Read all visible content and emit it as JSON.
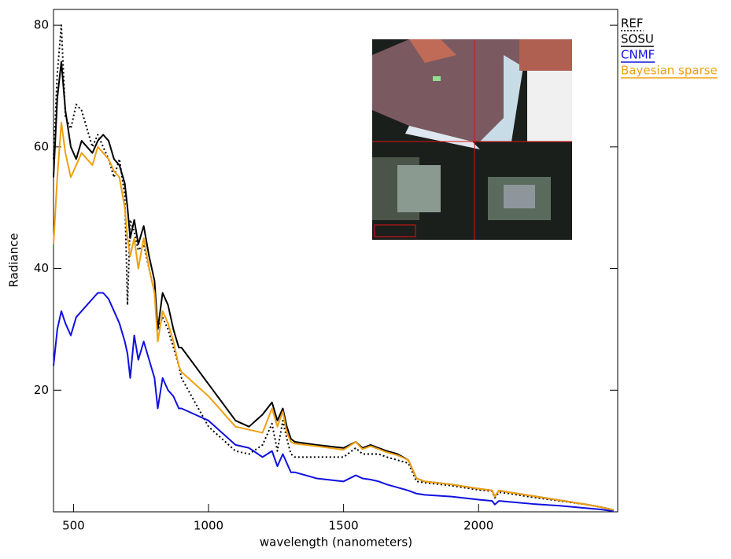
{
  "chart_data": {
    "type": "line",
    "xlabel": "wavelength (nanometers)",
    "ylabel": "Radiance",
    "x": [
      426,
      440,
      455,
      470,
      490,
      510,
      530,
      550,
      570,
      590,
      610,
      630,
      650,
      670,
      690,
      700,
      710,
      725,
      740,
      760,
      780,
      800,
      812,
      830,
      850,
      870,
      890,
      900,
      1000,
      1100,
      1150,
      1200,
      1235,
      1255,
      1275,
      1290,
      1305,
      1320,
      1400,
      1500,
      1545,
      1570,
      1600,
      1630,
      1660,
      1700,
      1740,
      1770,
      1800,
      1900,
      2000,
      2050,
      2060,
      2075,
      2100,
      2200,
      2300,
      2400,
      2450,
      2500
    ],
    "series": [
      {
        "name": "REF",
        "color": "#000000",
        "line_style": "dotted",
        "values": [
          58,
          72,
          80,
          65,
          63,
          67,
          66,
          63,
          60,
          62,
          60,
          58,
          55,
          58,
          52,
          34,
          48,
          46,
          43,
          44,
          40,
          36,
          30,
          32,
          30,
          27,
          24,
          22,
          14,
          10,
          9.5,
          11,
          14.5,
          10,
          15,
          12,
          9.5,
          9,
          9,
          9,
          10.5,
          9.5,
          9.5,
          9.5,
          9,
          8.5,
          8,
          5,
          4.8,
          4.3,
          3.6,
          3.4,
          2.3,
          3.2,
          3.1,
          2.4,
          1.8,
          1.2,
          0.8,
          0.3
        ]
      },
      {
        "name": "SOSU",
        "color": "#000000",
        "line_style": "solid",
        "values": [
          55,
          68,
          74,
          66,
          60,
          58,
          61,
          60,
          59,
          61,
          62,
          61,
          58,
          57,
          54,
          50,
          45,
          48,
          44,
          47,
          42,
          38,
          30,
          36,
          34,
          30,
          27,
          27,
          21,
          15,
          14,
          16,
          18,
          15,
          17,
          14,
          12,
          11.5,
          11,
          10.5,
          11.5,
          10.5,
          11,
          10.5,
          10,
          9.5,
          8.5,
          5.5,
          5,
          4.5,
          3.8,
          3.5,
          2.5,
          3.5,
          3.3,
          2.6,
          1.9,
          1.2,
          0.8,
          0.3
        ]
      },
      {
        "name": "CNMF",
        "color": "#1010e0",
        "line_style": "solid",
        "values": [
          24,
          30,
          33,
          31,
          29,
          32,
          33,
          34,
          35,
          36,
          36,
          35,
          33,
          31,
          28,
          26,
          22,
          29,
          25,
          28,
          25,
          22,
          17,
          22,
          20,
          19,
          17,
          17,
          15,
          11,
          10.5,
          9,
          10,
          7.5,
          9.5,
          8,
          6.5,
          6.5,
          5.5,
          5,
          6,
          5.5,
          5.3,
          5,
          4.5,
          4,
          3.5,
          3,
          2.8,
          2.5,
          2,
          1.8,
          1.2,
          1.8,
          1.7,
          1.3,
          1,
          0.6,
          0.4,
          0.1
        ]
      },
      {
        "name": "Bayesian sparse",
        "color": "#f0a010",
        "line_style": "solid",
        "values": [
          44,
          55,
          64,
          59,
          55,
          57,
          59,
          58,
          57,
          60,
          59,
          58,
          56,
          55,
          50,
          45,
          42,
          45,
          40,
          45,
          40,
          36,
          28,
          33,
          31,
          28,
          24,
          23,
          19,
          14,
          13.5,
          13,
          17,
          14,
          16.5,
          13,
          11.5,
          11.2,
          10.8,
          10.2,
          11.5,
          10.3,
          10.8,
          10.3,
          9.8,
          9.3,
          8.5,
          5.5,
          5,
          4.5,
          3.8,
          3.5,
          2.5,
          3.5,
          3.3,
          2.6,
          1.9,
          1.2,
          0.8,
          0.3
        ]
      }
    ],
    "xlim": [
      426,
      2515
    ],
    "ylim": [
      0,
      82.6
    ],
    "xticks": [
      500,
      1000,
      1500,
      2000
    ],
    "yticks": [
      20,
      40,
      60,
      80
    ]
  }
}
